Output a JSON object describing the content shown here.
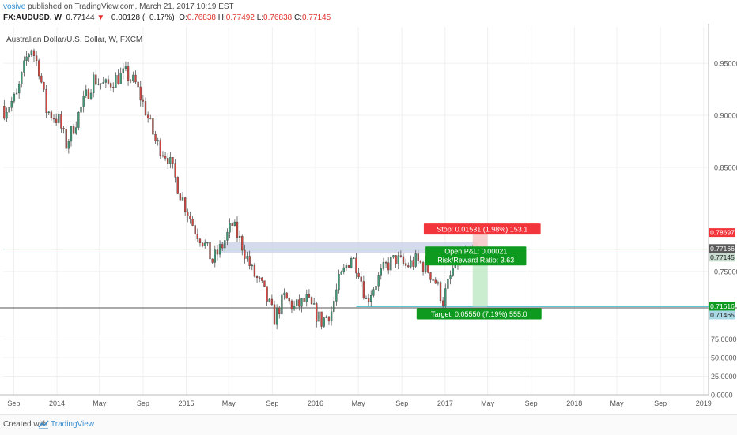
{
  "header": {
    "author": "vosive",
    "published": " published on TradingView.com, March 21, 2017 10:19 EST",
    "symbol": "FX:AUDUSD, W",
    "last": "0.77144",
    "change": "−0.00128 (−0.17%)",
    "open_label": "O:",
    "open": "0.76838",
    "high_label": "H:",
    "high": "0.77492",
    "low_label": "L:",
    "low": "0.76838",
    "close_label": "C:",
    "close": "0.77145"
  },
  "footer": {
    "created_with": "Created with",
    "brand": "TradingView"
  },
  "colors": {
    "up": "#3e9b76",
    "down": "#d3453e",
    "grid": "#f0f0f0",
    "zone": "#c7cfe6",
    "stop": "#f2353a",
    "target": "#0e9a1e",
    "target_fill": "#bde8c3",
    "stop_fill": "#f8c6c6",
    "price_line": "#a7c7b5",
    "hline": "#5bc4d6",
    "axis": "#999999"
  },
  "chart_data": {
    "type": "candlestick",
    "title": "Australian Dollar/U.S. Dollar, W, FXCM",
    "price_axis": {
      "ylim": [
        0.715,
        0.985
      ],
      "ticks": [
        0.95,
        0.9,
        0.85,
        0.75
      ],
      "tick_labels": [
        "0.95000",
        "0.90000",
        "0.85000",
        "0.75000"
      ]
    },
    "indicator_axis": {
      "ylim": [
        0,
        115
      ],
      "ticks": [
        75,
        50,
        25,
        0
      ],
      "tick_labels": [
        "75.0000",
        "50.0000",
        "25.0000",
        "0.0000"
      ]
    },
    "time_axis": {
      "labels": [
        "Sep",
        "2014",
        "May",
        "Sep",
        "2015",
        "May",
        "Sep",
        "2016",
        "May",
        "Sep",
        "2017",
        "May",
        "Sep",
        "2018",
        "May",
        "Sep",
        "2019"
      ],
      "dates": [
        "2013-09-01",
        "2014-01-01",
        "2014-05-01",
        "2014-09-01",
        "2015-01-01",
        "2015-05-01",
        "2015-09-01",
        "2016-01-01",
        "2016-05-01",
        "2016-09-01",
        "2017-01-01",
        "2017-05-01",
        "2017-09-01",
        "2018-01-01",
        "2018-05-01",
        "2018-09-01",
        "2019-01-01"
      ],
      "first_bar_date": "2013-08-05",
      "end_date": "2019-01-15"
    },
    "anchors": [
      [
        "2013-08-05",
        0.905
      ],
      [
        "2013-09-09",
        0.918
      ],
      [
        "2013-10-07",
        0.955
      ],
      [
        "2013-10-21",
        0.965
      ],
      [
        "2013-11-11",
        0.945
      ],
      [
        "2013-12-02",
        0.905
      ],
      [
        "2014-01-06",
        0.895
      ],
      [
        "2014-01-27",
        0.872
      ],
      [
        "2014-02-24",
        0.895
      ],
      [
        "2014-03-24",
        0.918
      ],
      [
        "2014-04-14",
        0.935
      ],
      [
        "2014-05-19",
        0.928
      ],
      [
        "2014-06-16",
        0.935
      ],
      [
        "2014-07-14",
        0.94
      ],
      [
        "2014-08-11",
        0.93
      ],
      [
        "2014-09-08",
        0.905
      ],
      [
        "2014-10-06",
        0.875
      ],
      [
        "2014-11-10",
        0.86
      ],
      [
        "2014-12-15",
        0.825
      ],
      [
        "2015-01-26",
        0.79
      ],
      [
        "2015-02-16",
        0.78
      ],
      [
        "2015-03-16",
        0.76
      ],
      [
        "2015-04-13",
        0.775
      ],
      [
        "2015-05-11",
        0.795
      ],
      [
        "2015-06-08",
        0.775
      ],
      [
        "2015-07-06",
        0.75
      ],
      [
        "2015-08-03",
        0.735
      ],
      [
        "2015-09-07",
        0.705
      ],
      [
        "2015-10-05",
        0.725
      ],
      [
        "2015-11-02",
        0.715
      ],
      [
        "2015-12-07",
        0.722
      ],
      [
        "2016-01-18",
        0.702
      ],
      [
        "2016-02-15",
        0.712
      ],
      [
        "2016-03-07",
        0.74
      ],
      [
        "2016-04-11",
        0.765
      ],
      [
        "2016-05-02",
        0.752
      ],
      [
        "2016-05-23",
        0.722
      ],
      [
        "2016-06-20",
        0.74
      ],
      [
        "2016-07-18",
        0.755
      ],
      [
        "2016-08-15",
        0.762
      ],
      [
        "2016-09-12",
        0.755
      ],
      [
        "2016-10-10",
        0.76
      ],
      [
        "2016-11-07",
        0.755
      ],
      [
        "2016-12-05",
        0.74
      ],
      [
        "2016-12-26",
        0.722
      ],
      [
        "2017-01-23",
        0.752
      ],
      [
        "2017-02-20",
        0.768
      ],
      [
        "2017-03-13",
        0.762
      ],
      [
        "2017-03-20",
        0.77145
      ]
    ],
    "resistance_zone": {
      "y": [
        0.768,
        0.778
      ],
      "x_start": "2015-04-06",
      "x_end": "2017-04-03"
    },
    "position": {
      "entry": 0.77166,
      "stop": 0.78697,
      "target": 0.71616,
      "x_start": "2017-03-20",
      "x_end": "2017-05-01",
      "stop_label": "Stop: 0.01531 (1.98%) 153.1",
      "target_label": "Target: 0.05550 (7.19%) 555.0",
      "pnl_label": "Open P&L: 0.00021",
      "rr_label": "Risk/Reward Ratio: 3.63"
    },
    "support_line": {
      "y": 0.71616,
      "x_start": "2016-04-25",
      "x_end": "2019-01-15"
    },
    "price_labels": [
      {
        "value": 0.78697,
        "text": "0.78697",
        "bg": "#f2353a",
        "fg": "#ffffff"
      },
      {
        "value": 0.77166,
        "text": "0.77166",
        "bg": "#5a5a5a",
        "fg": "#ffffff"
      },
      {
        "value": 0.77145,
        "text": "0.77145",
        "bg": "#c8ddd0",
        "fg": "#222222"
      },
      {
        "value": 0.71616,
        "text": "0.71616",
        "bg": "#0e9a1e",
        "fg": "#ffffff"
      },
      {
        "value": 0.71465,
        "text": "0.71465",
        "bg": "#a9d9e6",
        "fg": "#222222"
      }
    ]
  }
}
